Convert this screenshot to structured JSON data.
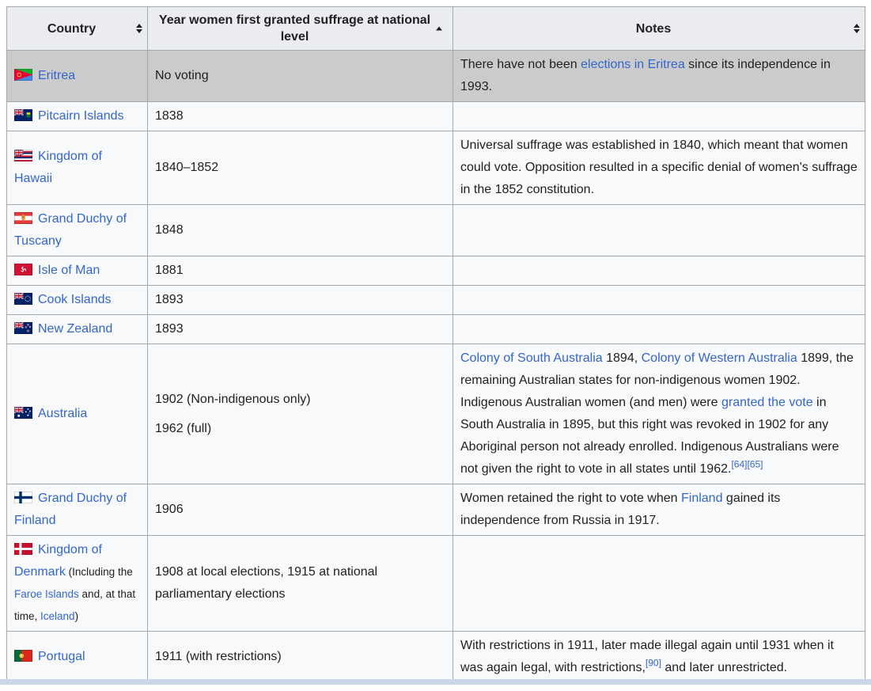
{
  "colors": {
    "link": "#3366cc",
    "text": "#202122",
    "header_bg": "#eaecf0",
    "row_bg": "#f8f9fa",
    "highlight_bg": "#cbcbcb",
    "border": "#a2a9b1",
    "scrollbar": "#cbd6e8"
  },
  "table": {
    "headers": [
      {
        "label": "Country",
        "sort": "both"
      },
      {
        "label": "Year women first granted suffrage at national level",
        "sort": "asc"
      },
      {
        "label": "Notes",
        "sort": "both"
      }
    ],
    "rows": [
      {
        "flag": "eritrea",
        "highlighted": true,
        "country": [
          [
            "link",
            "Eritrea"
          ]
        ],
        "year": [
          "No voting"
        ],
        "notes": [
          [
            "text",
            "There have not been "
          ],
          [
            "link",
            "elections in Eritrea"
          ],
          [
            "text",
            " since its independence in 1993."
          ]
        ]
      },
      {
        "flag": "pitcairn",
        "country": [
          [
            "link",
            "Pitcairn Islands"
          ]
        ],
        "year": [
          "1838"
        ],
        "notes": []
      },
      {
        "flag": "hawaii",
        "country": [
          [
            "link",
            "Kingdom of Hawaii"
          ]
        ],
        "year": [
          "1840–1852"
        ],
        "notes": [
          [
            "text",
            "Universal suffrage was established in 1840, which meant that women could vote. Opposition resulted in a specific denial of women's suffrage in the 1852 constitution."
          ]
        ]
      },
      {
        "flag": "tuscany",
        "country": [
          [
            "link",
            "Grand Duchy of Tuscany"
          ]
        ],
        "year": [
          "1848"
        ],
        "notes": []
      },
      {
        "flag": "isle-of-man",
        "country": [
          [
            "link",
            "Isle of Man"
          ]
        ],
        "year": [
          "1881"
        ],
        "notes": []
      },
      {
        "flag": "cook-islands",
        "country": [
          [
            "link",
            "Cook Islands"
          ]
        ],
        "year": [
          "1893"
        ],
        "notes": []
      },
      {
        "flag": "new-zealand",
        "country": [
          [
            "link",
            "New Zealand"
          ]
        ],
        "year": [
          "1893"
        ],
        "notes": []
      },
      {
        "flag": "australia",
        "country": [
          [
            "link",
            "Australia"
          ]
        ],
        "year": [
          "1902 (Non-indigenous only)",
          "1962 (full)"
        ],
        "notes": [
          [
            "link",
            "Colony of South Australia"
          ],
          [
            "text",
            " 1894, "
          ],
          [
            "link",
            "Colony of Western Australia"
          ],
          [
            "text",
            " 1899, the remaining Australian states for non-indigenous women 1902. Indigenous Australian women (and men) were "
          ],
          [
            "link",
            "granted the vote"
          ],
          [
            "text",
            " in South Australia in 1895, but this right was revoked in 1902 for any Aboriginal person not already enrolled. Indigenous Australians were not given the right to vote in all states until 1962."
          ],
          [
            "sup",
            "[64]"
          ],
          [
            "sup",
            "[65]"
          ]
        ]
      },
      {
        "flag": "finland",
        "country": [
          [
            "link",
            "Grand Duchy of Finland"
          ]
        ],
        "year": [
          "1906"
        ],
        "notes": [
          [
            "text",
            "Women retained the right to vote when "
          ],
          [
            "link",
            "Finland"
          ],
          [
            "text",
            " gained its independence from Russia in 1917."
          ]
        ]
      },
      {
        "flag": "denmark",
        "country": [
          [
            "link",
            "Kingdom of Denmark"
          ],
          [
            "small-text",
            " (Including the "
          ],
          [
            "small-link",
            "Faroe Islands"
          ],
          [
            "small-text",
            " and, at that time, "
          ],
          [
            "small-link",
            "Iceland"
          ],
          [
            "small-text",
            ")"
          ]
        ],
        "year": [
          "1908 at local elections, 1915 at national parliamentary elections"
        ],
        "notes": []
      },
      {
        "flag": "portugal",
        "country": [
          [
            "link",
            "Portugal"
          ]
        ],
        "year": [
          "1911 (with restrictions)"
        ],
        "notes": [
          [
            "text",
            "With restrictions in 1911, later made illegal again until 1931 when it was again legal, with restrictions,"
          ],
          [
            "sup",
            "[90]"
          ],
          [
            "text",
            " and later unrestricted."
          ]
        ]
      }
    ]
  }
}
